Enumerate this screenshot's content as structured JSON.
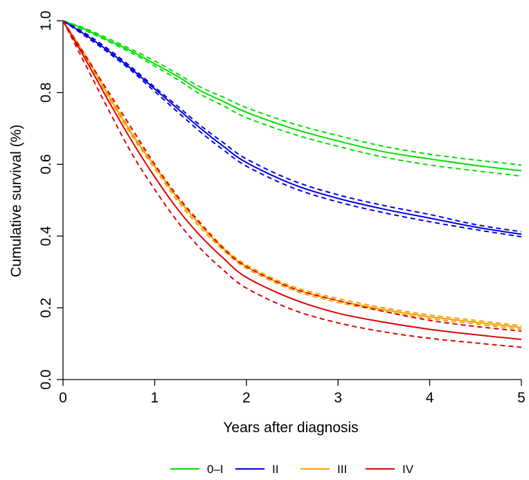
{
  "chart_data": {
    "type": "line",
    "title": "",
    "xlabel": "Years after diagnosis",
    "ylabel": "Cumulative survival (%)",
    "xlim": [
      0,
      5
    ],
    "ylim": [
      0,
      1
    ],
    "xticks": [
      "0",
      "1",
      "2",
      "3",
      "4",
      "5"
    ],
    "yticks": [
      "0.0",
      "0.2",
      "0.4",
      "0.6",
      "0.8",
      "1.0"
    ],
    "grid": false,
    "legend_position": "bottom",
    "x": [
      0,
      0.25,
      0.5,
      0.75,
      1,
      1.25,
      1.5,
      1.75,
      2,
      2.5,
      3,
      3.5,
      4,
      4.5,
      5
    ],
    "series": [
      {
        "name": "0–I",
        "color": "#00e000",
        "values": [
          1.0,
          0.975,
          0.945,
          0.915,
          0.88,
          0.845,
          0.805,
          0.775,
          0.745,
          0.7,
          0.665,
          0.635,
          0.615,
          0.597,
          0.582
        ],
        "lower": [
          1.0,
          0.972,
          0.942,
          0.91,
          0.874,
          0.836,
          0.795,
          0.763,
          0.73,
          0.685,
          0.65,
          0.62,
          0.598,
          0.582,
          0.567
        ],
        "upper": [
          1.0,
          0.978,
          0.95,
          0.92,
          0.888,
          0.852,
          0.815,
          0.787,
          0.758,
          0.714,
          0.68,
          0.65,
          0.628,
          0.612,
          0.598
        ]
      },
      {
        "name": "II",
        "color": "#0000e0",
        "values": [
          1.0,
          0.96,
          0.915,
          0.865,
          0.81,
          0.755,
          0.7,
          0.65,
          0.605,
          0.545,
          0.505,
          0.475,
          0.45,
          0.425,
          0.405
        ],
        "lower": [
          1.0,
          0.956,
          0.91,
          0.86,
          0.803,
          0.746,
          0.69,
          0.64,
          0.595,
          0.535,
          0.495,
          0.465,
          0.44,
          0.418,
          0.398
        ],
        "upper": [
          1.0,
          0.964,
          0.92,
          0.87,
          0.815,
          0.762,
          0.708,
          0.66,
          0.615,
          0.555,
          0.515,
          0.485,
          0.46,
          0.432,
          0.412
        ]
      },
      {
        "name": "III",
        "color": "#f5a000",
        "values": [
          1.0,
          0.9,
          0.79,
          0.685,
          0.595,
          0.505,
          0.43,
          0.365,
          0.315,
          0.255,
          0.22,
          0.195,
          0.175,
          0.16,
          0.145
        ],
        "lower": [
          1.0,
          0.897,
          0.785,
          0.68,
          0.588,
          0.498,
          0.423,
          0.36,
          0.31,
          0.25,
          0.215,
          0.19,
          0.17,
          0.155,
          0.14
        ],
        "upper": [
          1.0,
          0.903,
          0.795,
          0.69,
          0.6,
          0.512,
          0.437,
          0.37,
          0.32,
          0.26,
          0.226,
          0.2,
          0.18,
          0.165,
          0.15
        ]
      },
      {
        "name": "IV",
        "color": "#e00000",
        "values": [
          1.0,
          0.89,
          0.775,
          0.665,
          0.565,
          0.475,
          0.4,
          0.338,
          0.285,
          0.225,
          0.185,
          0.16,
          0.14,
          0.125,
          0.112
        ],
        "lower": [
          1.0,
          0.875,
          0.75,
          0.63,
          0.53,
          0.44,
          0.365,
          0.305,
          0.255,
          0.195,
          0.158,
          0.133,
          0.115,
          0.102,
          0.09
        ],
        "upper": [
          1.0,
          0.9,
          0.8,
          0.7,
          0.6,
          0.51,
          0.435,
          0.365,
          0.315,
          0.255,
          0.22,
          0.19,
          0.165,
          0.148,
          0.135
        ]
      }
    ]
  }
}
